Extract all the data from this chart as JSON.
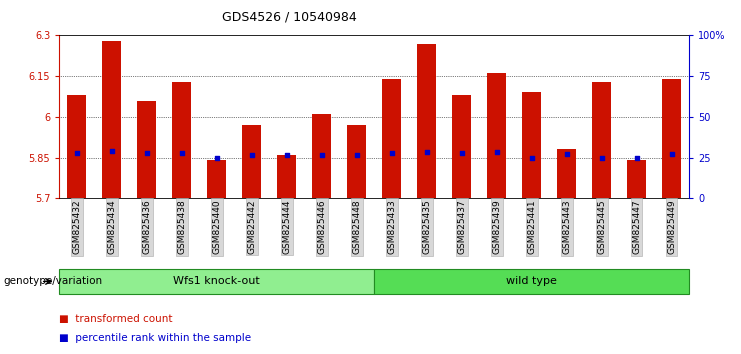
{
  "title": "GDS4526 / 10540984",
  "samples": [
    "GSM825432",
    "GSM825434",
    "GSM825436",
    "GSM825438",
    "GSM825440",
    "GSM825442",
    "GSM825444",
    "GSM825446",
    "GSM825448",
    "GSM825433",
    "GSM825435",
    "GSM825437",
    "GSM825439",
    "GSM825441",
    "GSM825443",
    "GSM825445",
    "GSM825447",
    "GSM825449"
  ],
  "bar_tops": [
    6.08,
    6.28,
    6.06,
    6.13,
    5.84,
    5.97,
    5.86,
    6.01,
    5.97,
    6.14,
    6.27,
    6.08,
    6.16,
    6.09,
    5.88,
    6.13,
    5.84,
    6.14
  ],
  "blue_dots": [
    5.865,
    5.875,
    5.868,
    5.868,
    5.848,
    5.858,
    5.858,
    5.86,
    5.858,
    5.865,
    5.87,
    5.865,
    5.87,
    5.85,
    5.862,
    5.85,
    5.85,
    5.862
  ],
  "groups": [
    {
      "label": "Wfs1 knock-out",
      "color": "#90EE90",
      "start": 0,
      "end": 9
    },
    {
      "label": "wild type",
      "color": "#55DD55",
      "start": 9,
      "end": 18
    }
  ],
  "ymin": 5.7,
  "ymax": 6.3,
  "yticks": [
    5.7,
    5.85,
    6.0,
    6.15,
    6.3
  ],
  "ytick_labels": [
    "5.7",
    "5.85",
    "6",
    "6.15",
    "6.3"
  ],
  "right_yticks": [
    0,
    25,
    50,
    75,
    100
  ],
  "right_ytick_labels": [
    "0",
    "25",
    "50",
    "75",
    "100%"
  ],
  "bar_color": "#CC1100",
  "dot_color": "#0000CC",
  "bar_width": 0.55,
  "legend_items": [
    {
      "label": "transformed count",
      "color": "#CC1100"
    },
    {
      "label": "percentile rank within the sample",
      "color": "#0000CC"
    }
  ],
  "genotype_label": "genotype/variation",
  "bg_color": "#ffffff",
  "left_axis_color": "#CC1100",
  "right_axis_color": "#0000CC",
  "group_border_color": "#228B22"
}
